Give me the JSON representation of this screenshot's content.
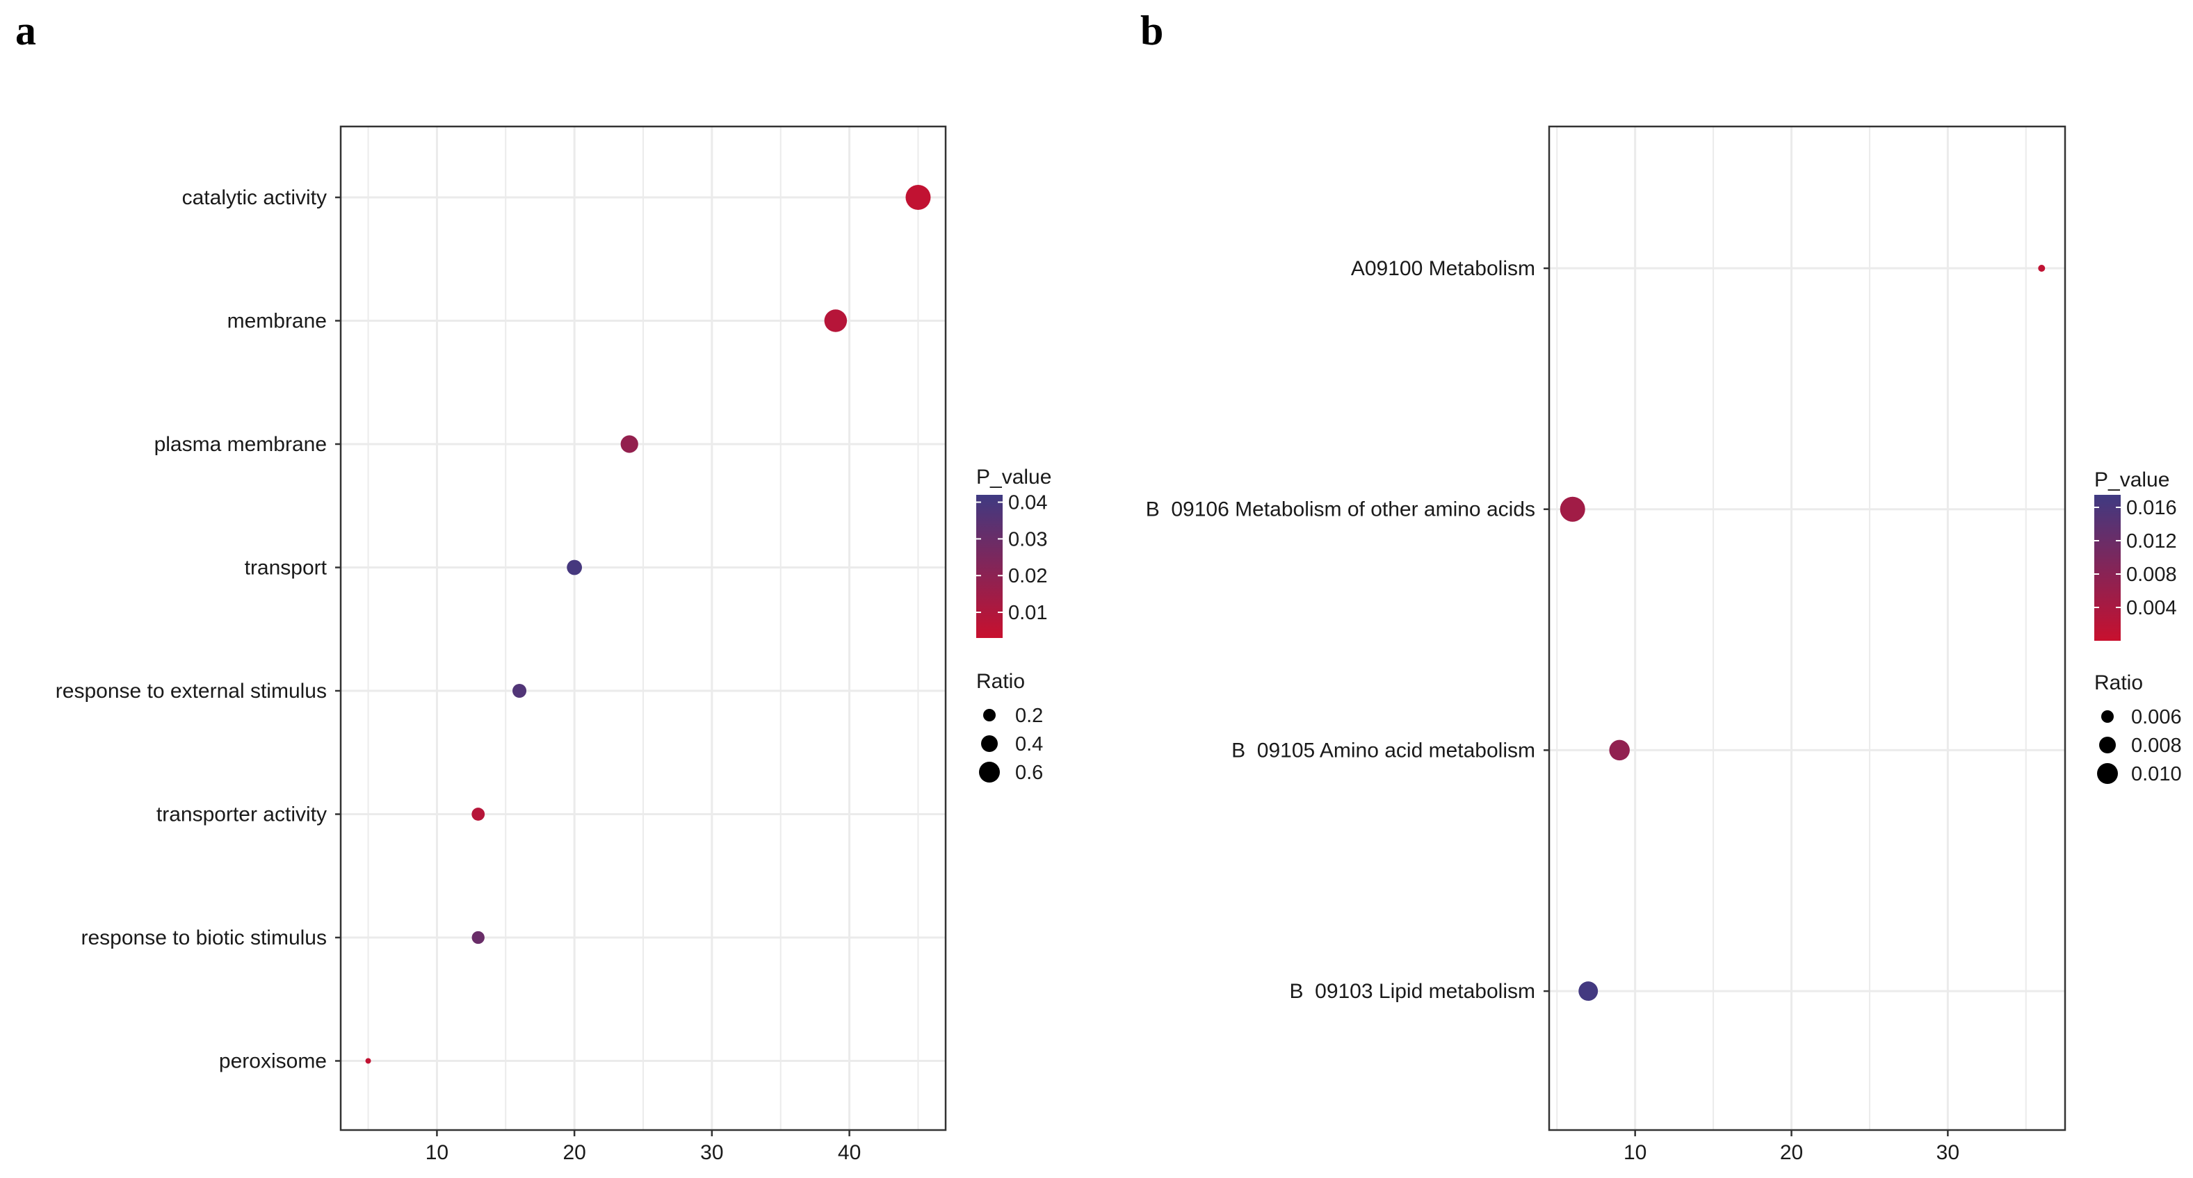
{
  "panel_letters": [
    "a",
    "b"
  ],
  "chart_data": [
    {
      "type": "scatter",
      "panel": "a",
      "categories": [
        "catalytic activity",
        "membrane",
        "plasma membrane",
        "transport",
        "response to external stimulus",
        "transporter activity",
        "response to biotic stimulus",
        "peroxisome"
      ],
      "x_values": [
        45,
        39,
        24,
        20,
        16,
        13,
        13,
        5
      ],
      "p_values": [
        0.005,
        0.008,
        0.018,
        0.04,
        0.037,
        0.008,
        0.03,
        0.005
      ],
      "ratios": [
        0.7,
        0.62,
        0.45,
        0.37,
        0.33,
        0.3,
        0.29,
        0.05
      ],
      "xlim": [
        3,
        47
      ],
      "x_ticks": [
        10,
        20,
        30,
        40
      ],
      "title": "",
      "xlabel": "",
      "ylabel": "",
      "grid": true,
      "color_legend": {
        "title": "P_value",
        "range": [
          0.003,
          0.042
        ],
        "ticks": [
          0.04,
          0.03,
          0.02,
          0.01
        ],
        "tick_labels": [
          "0.04",
          "0.03",
          "0.02",
          "0.01"
        ],
        "low_color": "#C8102E",
        "high_color": "#3F3A82"
      },
      "size_legend": {
        "title": "Ratio",
        "values": [
          0.2,
          0.4,
          0.6
        ],
        "labels": [
          "0.2",
          "0.4",
          "0.6"
        ]
      },
      "legend_position": "right"
    },
    {
      "type": "scatter",
      "panel": "b",
      "categories": [
        "A09100 Metabolism",
        "B  09106 Metabolism of other amino acids",
        "B  09105 Amino acid metabolism",
        "B  09103 Lipid metabolism"
      ],
      "x_values": [
        36,
        6,
        9,
        7
      ],
      "p_values": [
        0.001,
        0.005,
        0.007,
        0.017
      ],
      "ratios": [
        0.003,
        0.011,
        0.009,
        0.0085
      ],
      "xlim": [
        4.5,
        37.5
      ],
      "x_ticks": [
        10,
        20,
        30
      ],
      "title": "",
      "xlabel": "",
      "ylabel": "",
      "grid": true,
      "color_legend": {
        "title": "P_value",
        "range": [
          0.0,
          0.0175
        ],
        "ticks": [
          0.016,
          0.012,
          0.008,
          0.004
        ],
        "tick_labels": [
          "0.016",
          "0.012",
          "0.008",
          "0.004"
        ],
        "low_color": "#C8102E",
        "high_color": "#3F3A82"
      },
      "size_legend": {
        "title": "Ratio",
        "values": [
          0.006,
          0.008,
          0.01
        ],
        "labels": [
          "0.006",
          "0.008",
          "0.010"
        ]
      },
      "legend_position": "right"
    }
  ]
}
